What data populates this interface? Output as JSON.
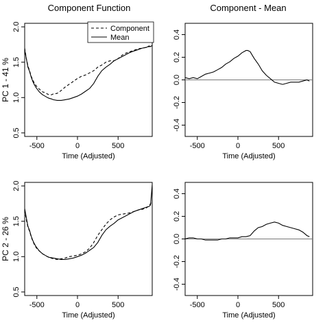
{
  "titles": {
    "left": "Component Function",
    "right": "Component - Mean"
  },
  "legend": {
    "component": "Component",
    "mean": "Mean"
  },
  "chart_data": [
    {
      "type": "line",
      "panel": "top-left",
      "ylabel": "PC 1 - 41 %",
      "xlabel": "Time (Adjusted)",
      "xlim": [
        -650,
        920
      ],
      "ylim": [
        0.45,
        2.05
      ],
      "xticks": [
        -500,
        0,
        500
      ],
      "xtick_labels": [
        "-500",
        "0",
        "500"
      ],
      "yticks": [
        0.5,
        1.0,
        1.5,
        2.0
      ],
      "ytick_labels": [
        "0.5",
        "1.0",
        "1.5",
        "2.0"
      ],
      "legend_position": "top-right",
      "series": [
        {
          "name": "Component",
          "style": "dashed",
          "x": [
            -650,
            -630,
            -610,
            -590,
            -570,
            -550,
            -530,
            -510,
            -490,
            -470,
            -450,
            -430,
            -400,
            -370,
            -350,
            -320,
            -300,
            -250,
            -200,
            -150,
            -100,
            -50,
            0,
            50,
            100,
            150,
            200,
            250,
            300,
            350,
            400,
            450,
            500,
            550,
            600,
            650,
            700,
            750,
            800,
            850,
            880,
            900,
            920
          ],
          "y": [
            1.7,
            1.55,
            1.45,
            1.38,
            1.3,
            1.25,
            1.2,
            1.17,
            1.14,
            1.12,
            1.1,
            1.08,
            1.07,
            1.05,
            1.04,
            1.04,
            1.05,
            1.06,
            1.1,
            1.15,
            1.19,
            1.23,
            1.27,
            1.3,
            1.32,
            1.35,
            1.38,
            1.43,
            1.46,
            1.5,
            1.52,
            1.52,
            1.55,
            1.6,
            1.63,
            1.65,
            1.67,
            1.69,
            1.7,
            1.71,
            1.72,
            1.72,
            1.73
          ]
        },
        {
          "name": "Mean",
          "style": "solid",
          "x": [
            -650,
            -630,
            -610,
            -590,
            -570,
            -550,
            -530,
            -510,
            -490,
            -470,
            -450,
            -430,
            -400,
            -370,
            -350,
            -320,
            -300,
            -250,
            -200,
            -150,
            -100,
            -50,
            0,
            50,
            100,
            150,
            200,
            250,
            300,
            350,
            400,
            450,
            500,
            550,
            600,
            650,
            700,
            750,
            800,
            850,
            880,
            900,
            920
          ],
          "y": [
            1.68,
            1.55,
            1.43,
            1.37,
            1.29,
            1.23,
            1.18,
            1.14,
            1.11,
            1.08,
            1.06,
            1.04,
            1.02,
            1.0,
            0.99,
            0.98,
            0.97,
            0.96,
            0.96,
            0.97,
            0.98,
            1.0,
            1.02,
            1.05,
            1.09,
            1.13,
            1.2,
            1.3,
            1.38,
            1.43,
            1.47,
            1.52,
            1.55,
            1.58,
            1.61,
            1.64,
            1.66,
            1.68,
            1.7,
            1.71,
            1.73,
            1.72,
            1.74
          ]
        }
      ]
    },
    {
      "type": "line",
      "panel": "top-right",
      "xlabel": "Time (Adjusted)",
      "xlim": [
        -650,
        920
      ],
      "ylim": [
        -0.5,
        0.5
      ],
      "xticks": [
        -500,
        0,
        500
      ],
      "xtick_labels": [
        "-500",
        "0",
        "500"
      ],
      "yticks": [
        -0.4,
        -0.2,
        0.0,
        0.2,
        0.4
      ],
      "ytick_labels": [
        "-0.4",
        "-0.2",
        "0.0",
        "0.2",
        "0.4"
      ],
      "hline": 0,
      "series": [
        {
          "style": "solid",
          "x": [
            -650,
            -600,
            -550,
            -500,
            -450,
            -400,
            -350,
            -300,
            -250,
            -200,
            -150,
            -100,
            -50,
            0,
            50,
            100,
            120,
            150,
            200,
            250,
            300,
            350,
            400,
            450,
            500,
            550,
            600,
            650,
            700,
            750,
            800,
            850,
            880
          ],
          "y": [
            0.02,
            0.01,
            0.02,
            0.01,
            0.03,
            0.05,
            0.06,
            0.07,
            0.09,
            0.11,
            0.14,
            0.16,
            0.19,
            0.21,
            0.24,
            0.26,
            0.26,
            0.25,
            0.19,
            0.14,
            0.08,
            0.04,
            0.01,
            -0.02,
            -0.03,
            -0.04,
            -0.03,
            -0.02,
            -0.02,
            -0.02,
            -0.01,
            0.0,
            -0.01
          ]
        }
      ]
    },
    {
      "type": "line",
      "panel": "bottom-left",
      "ylabel": "PC 2 - 26 %",
      "xlabel": "Time (Adjusted)",
      "xlim": [
        -650,
        920
      ],
      "ylim": [
        0.45,
        2.05
      ],
      "xticks": [
        -500,
        0,
        500
      ],
      "xtick_labels": [
        "-500",
        "0",
        "500"
      ],
      "yticks": [
        0.5,
        1.0,
        1.5,
        2.0
      ],
      "ytick_labels": [
        "0.5",
        "1.0",
        "1.5",
        "2.0"
      ],
      "series": [
        {
          "name": "Component",
          "style": "dashed",
          "x": [
            -650,
            -630,
            -610,
            -590,
            -570,
            -550,
            -530,
            -510,
            -490,
            -470,
            -450,
            -430,
            -400,
            -370,
            -350,
            -300,
            -250,
            -200,
            -150,
            -100,
            -50,
            0,
            50,
            100,
            150,
            200,
            250,
            300,
            350,
            400,
            450,
            500,
            550,
            600,
            650,
            700,
            750,
            800,
            850,
            880,
            900,
            920
          ],
          "y": [
            1.66,
            1.52,
            1.42,
            1.36,
            1.28,
            1.22,
            1.17,
            1.13,
            1.1,
            1.08,
            1.06,
            1.04,
            1.02,
            1.0,
            0.99,
            0.97,
            0.96,
            0.97,
            0.98,
            1.0,
            1.01,
            1.02,
            1.04,
            1.07,
            1.12,
            1.2,
            1.3,
            1.38,
            1.46,
            1.52,
            1.56,
            1.59,
            1.6,
            1.61,
            1.62,
            1.64,
            1.66,
            1.67,
            1.69,
            1.72,
            1.75,
            1.78
          ]
        },
        {
          "name": "Mean",
          "style": "solid",
          "x": [
            -650,
            -630,
            -610,
            -590,
            -570,
            -550,
            -530,
            -510,
            -490,
            -470,
            -450,
            -430,
            -400,
            -370,
            -350,
            -300,
            -250,
            -200,
            -150,
            -100,
            -50,
            0,
            50,
            100,
            150,
            200,
            250,
            300,
            350,
            400,
            450,
            500,
            550,
            600,
            650,
            700,
            750,
            800,
            850,
            880,
            900,
            920
          ],
          "y": [
            1.68,
            1.55,
            1.43,
            1.37,
            1.29,
            1.23,
            1.18,
            1.14,
            1.11,
            1.08,
            1.06,
            1.04,
            1.02,
            1.0,
            0.99,
            0.98,
            0.97,
            0.96,
            0.96,
            0.97,
            0.98,
            1.0,
            1.02,
            1.05,
            1.09,
            1.13,
            1.2,
            1.3,
            1.38,
            1.43,
            1.47,
            1.52,
            1.55,
            1.58,
            1.61,
            1.64,
            1.66,
            1.68,
            1.7,
            1.71,
            1.73,
            2.02
          ]
        }
      ]
    },
    {
      "type": "line",
      "panel": "bottom-right",
      "xlabel": "Time (Adjusted)",
      "xlim": [
        -650,
        920
      ],
      "ylim": [
        -0.5,
        0.5
      ],
      "xticks": [
        -500,
        0,
        500
      ],
      "xtick_labels": [
        "-500",
        "0",
        "500"
      ],
      "yticks": [
        -0.4,
        -0.2,
        0.0,
        0.2,
        0.4
      ],
      "ytick_labels": [
        "-0.4",
        "-0.2",
        "0.0",
        "0.2",
        "0.4"
      ],
      "hline": 0,
      "series": [
        {
          "style": "solid",
          "x": [
            -650,
            -600,
            -550,
            -500,
            -450,
            -400,
            -350,
            -300,
            -250,
            -200,
            -150,
            -100,
            -50,
            0,
            50,
            100,
            150,
            200,
            250,
            300,
            350,
            400,
            450,
            500,
            550,
            600,
            650,
            700,
            750,
            800,
            850,
            880
          ],
          "y": [
            0.0,
            0.01,
            0.01,
            0.0,
            0.0,
            -0.01,
            -0.01,
            -0.01,
            -0.01,
            0.0,
            0.0,
            0.01,
            0.01,
            0.01,
            0.02,
            0.02,
            0.03,
            0.07,
            0.1,
            0.11,
            0.13,
            0.14,
            0.15,
            0.14,
            0.12,
            0.11,
            0.1,
            0.09,
            0.08,
            0.06,
            0.03,
            0.02
          ]
        }
      ]
    }
  ]
}
